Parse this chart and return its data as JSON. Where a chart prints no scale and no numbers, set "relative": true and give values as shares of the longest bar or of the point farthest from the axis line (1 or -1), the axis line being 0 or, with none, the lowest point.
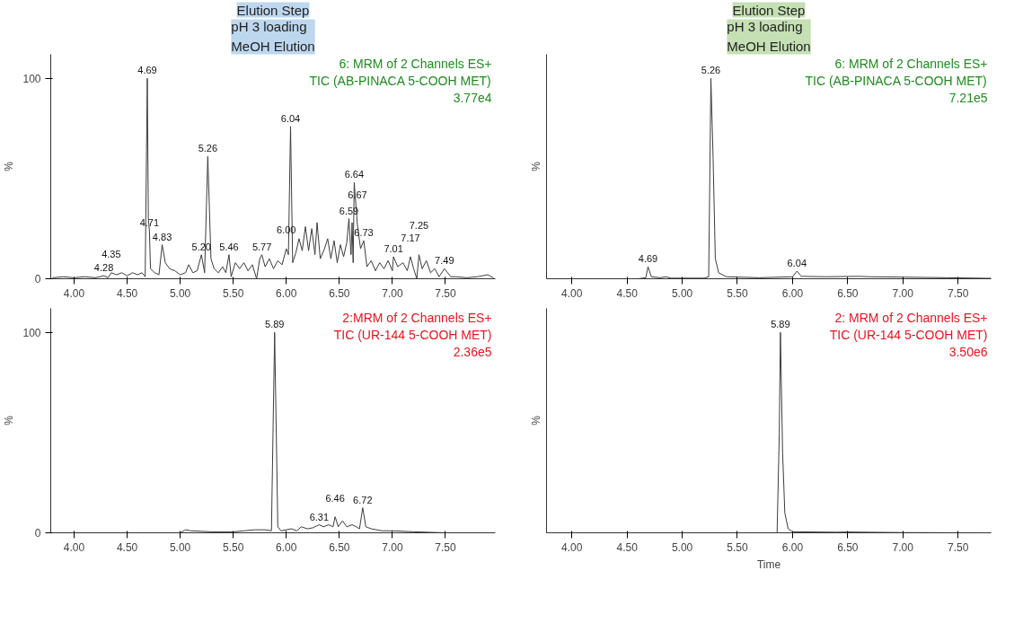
{
  "chart_data": [
    {
      "type": "line",
      "title": "Elution Step",
      "subtitle": "pH 3 loading\nMeOH Elution",
      "ylabel": "%",
      "xlim": [
        3.78,
        7.97
      ],
      "xticks": [
        {
          "value": 4,
          "label": "4.00"
        },
        {
          "value": 4.5,
          "label": "4.50"
        },
        {
          "value": 5,
          "label": "5.00"
        },
        {
          "value": 5.5,
          "label": "5.50"
        },
        {
          "value": 6,
          "label": "6.00"
        },
        {
          "value": 6.5,
          "label": "6.50"
        },
        {
          "value": 7,
          "label": "7.00"
        },
        {
          "value": 7.5,
          "label": "7.50"
        }
      ],
      "ylim": [
        0,
        112
      ],
      "yticks": [
        0,
        100
      ],
      "series": [
        {
          "color": "#3c3c3c",
          "x": [
            3.8,
            3.9,
            4.0,
            4.1,
            4.2,
            4.28,
            4.32,
            4.35,
            4.4,
            4.45,
            4.5,
            4.55,
            4.6,
            4.64,
            4.67,
            4.69,
            4.7,
            4.71,
            4.72,
            4.76,
            4.8,
            4.83,
            4.86,
            4.9,
            4.95,
            5.0,
            5.05,
            5.08,
            5.12,
            5.16,
            5.2,
            5.23,
            5.26,
            5.29,
            5.32,
            5.36,
            5.4,
            5.43,
            5.46,
            5.48,
            5.52,
            5.56,
            5.6,
            5.64,
            5.68,
            5.72,
            5.75,
            5.77,
            5.8,
            5.84,
            5.88,
            5.92,
            5.96,
            6.0,
            6.02,
            6.04,
            6.06,
            6.09,
            6.12,
            6.15,
            6.18,
            6.21,
            6.24,
            6.27,
            6.29,
            6.32,
            6.36,
            6.39,
            6.42,
            6.45,
            6.48,
            6.51,
            6.54,
            6.57,
            6.59,
            6.61,
            6.62,
            6.63,
            6.64,
            6.67,
            6.7,
            6.73,
            6.76,
            6.8,
            6.84,
            6.88,
            6.92,
            6.96,
            7.0,
            7.01,
            7.05,
            7.1,
            7.14,
            7.17,
            7.2,
            7.23,
            7.25,
            7.28,
            7.32,
            7.36,
            7.4,
            7.44,
            7.49,
            7.55,
            7.6,
            7.7,
            7.8,
            7.9,
            7.95
          ],
          "values": [
            0.5,
            1,
            0.5,
            1,
            0.5,
            1.5,
            0.5,
            3,
            2,
            3,
            1.5,
            3,
            2,
            3,
            1,
            100,
            30,
            24,
            5,
            3,
            2,
            17,
            8,
            5,
            4,
            2,
            3,
            7,
            3,
            4,
            12,
            3,
            61,
            10,
            5,
            3,
            6,
            3,
            12,
            1,
            8,
            5,
            8,
            4,
            7,
            0,
            10,
            12,
            6,
            10,
            5,
            9,
            7,
            15,
            12,
            76,
            8,
            13,
            20,
            14,
            26,
            14,
            25,
            12,
            28,
            10,
            15,
            20,
            10,
            19,
            8,
            17,
            11,
            18,
            30,
            12,
            28,
            8,
            48,
            27,
            15,
            19,
            6,
            9,
            4,
            8,
            5,
            9,
            4,
            11,
            6,
            8,
            4,
            11,
            5,
            0,
            12,
            5,
            9,
            3,
            5,
            1,
            5,
            1,
            1,
            0.5,
            1,
            2,
            0.5
          ]
        }
      ],
      "annotations": [
        "6: MRM of 2 Channels ES+\nTIC (AB-PINACA 5-COOH MET)\n3.77e4",
        {
          "text": "4.69",
          "x": 4.69,
          "y": 100
        },
        {
          "text": "4.71",
          "x": 4.71,
          "y": 24
        },
        {
          "text": "4.83",
          "x": 4.83,
          "y": 17
        },
        {
          "text": "5.20",
          "x": 5.2,
          "y": 12
        },
        {
          "text": "5.26",
          "x": 5.26,
          "y": 61
        },
        {
          "text": "5.46",
          "x": 5.46,
          "y": 12
        },
        {
          "text": "5.77",
          "x": 5.77,
          "y": 12
        },
        {
          "text": "6.00",
          "x": 6.0,
          "y": 15
        },
        {
          "text": "6.04",
          "x": 6.04,
          "y": 76
        },
        {
          "text": "6.59",
          "x": 6.59,
          "y": 30
        },
        {
          "text": "6.64",
          "x": 6.64,
          "y": 48
        },
        {
          "text": "6.67",
          "x": 6.67,
          "y": 27
        },
        {
          "text": "6.73",
          "x": 6.73,
          "y": 19
        },
        {
          "text": "7.01",
          "x": 7.01,
          "y": 11
        },
        {
          "text": "7.17",
          "x": 7.17,
          "y": 11
        },
        {
          "text": "7.25",
          "x": 7.25,
          "y": 12
        },
        {
          "text": "7.49",
          "x": 7.49,
          "y": 5
        },
        {
          "text": "4.28",
          "x": 4.28,
          "y": 1.5
        },
        {
          "text": "4.35",
          "x": 4.35,
          "y": 3
        }
      ]
    },
    {
      "type": "line",
      "title": "Elution Step",
      "subtitle": "pH 3 loading\nMeOH Elution",
      "ylabel": "%",
      "relative": true,
      "xlim": [
        3.77,
        7.8
      ],
      "xticks": [
        {
          "value": 4,
          "label": "4.00"
        },
        {
          "value": 4.5,
          "label": "4.50"
        },
        {
          "value": 5,
          "label": "5.00"
        },
        {
          "value": 5.5,
          "label": "5.50"
        },
        {
          "value": 6,
          "label": "6.00"
        },
        {
          "value": 6.5,
          "label": "6.50"
        },
        {
          "value": 7,
          "label": "7.00"
        },
        {
          "value": 7.5,
          "label": "7.50"
        }
      ],
      "series": [
        {
          "color": "#3c3c3c",
          "x": [
            3.77,
            4.6,
            4.67,
            4.69,
            4.72,
            4.8,
            4.85,
            4.9,
            5.2,
            5.24,
            5.25,
            5.26,
            5.28,
            5.3,
            5.33,
            5.4,
            5.7,
            6.0,
            6.04,
            6.08,
            6.3,
            6.6,
            6.7,
            7.0,
            7.4,
            7.8
          ],
          "values": [
            0,
            0,
            0.005,
            0.06,
            0.01,
            0.005,
            0.01,
            0.003,
            0.003,
            0.01,
            0.5,
            1,
            0.6,
            0.1,
            0.03,
            0.01,
            0.005,
            0.01,
            0.038,
            0.012,
            0.01,
            0.012,
            0.01,
            0.008,
            0.005,
            0.002
          ]
        }
      ],
      "annotations": [
        "6: MRM of 2 Channels ES+\nTIC (AB-PINACA 5-COOH MET)\n7.21e5",
        {
          "text": "4.69",
          "x": 4.69,
          "y": 0.06
        },
        {
          "text": "5.26",
          "x": 5.26,
          "y": 1
        },
        {
          "text": "6.04",
          "x": 6.04,
          "y": 0.038
        }
      ]
    },
    {
      "type": "line",
      "ylabel": "%",
      "xlim": [
        3.78,
        7.97
      ],
      "xticks": [
        {
          "value": 4,
          "label": "4.00"
        },
        {
          "value": 4.5,
          "label": "4.50"
        },
        {
          "value": 5,
          "label": "5.00"
        },
        {
          "value": 5.5,
          "label": "5.50"
        },
        {
          "value": 6,
          "label": "6.00"
        },
        {
          "value": 6.5,
          "label": "6.50"
        },
        {
          "value": 7,
          "label": "7.00"
        },
        {
          "value": 7.5,
          "label": "7.50"
        }
      ],
      "ylim": [
        0,
        112
      ],
      "yticks": [
        0,
        100
      ],
      "series": [
        {
          "color": "#3c3c3c",
          "x": [
            3.8,
            4.5,
            5.0,
            5.05,
            5.1,
            5.3,
            5.5,
            5.6,
            5.7,
            5.8,
            5.86,
            5.89,
            5.92,
            5.95,
            6.05,
            6.1,
            6.14,
            6.2,
            6.25,
            6.31,
            6.35,
            6.4,
            6.44,
            6.46,
            6.49,
            6.53,
            6.57,
            6.62,
            6.66,
            6.69,
            6.72,
            6.75,
            6.8,
            6.9,
            7.0,
            7.2,
            7.5,
            7.95
          ],
          "values": [
            0,
            0,
            0,
            1.5,
            1,
            0.5,
            0.5,
            1,
            1.5,
            1.5,
            1,
            100,
            3,
            1,
            2,
            1,
            3,
            2,
            2.5,
            4,
            3,
            4,
            3,
            8,
            3,
            6,
            3,
            4,
            3,
            2,
            12.5,
            3,
            2,
            1,
            1,
            0.5,
            0,
            0
          ]
        }
      ],
      "annotations": [
        "2:MRM of 2 Channels ES+\nTIC (UR-144 5-COOH MET)\n2.36e5",
        {
          "text": "5.89",
          "x": 5.89,
          "y": 100
        },
        {
          "text": "6.31",
          "x": 6.31,
          "y": 4
        },
        {
          "text": "6.46",
          "x": 6.46,
          "y": 8
        },
        {
          "text": "6.72",
          "x": 6.72,
          "y": 12.5
        }
      ]
    },
    {
      "type": "line",
      "ylabel": "%",
      "xlabel": "Time",
      "relative": true,
      "xlim": [
        3.77,
        7.8
      ],
      "xticks": [
        {
          "value": 4,
          "label": "4.00"
        },
        {
          "value": 4.5,
          "label": "4.50"
        },
        {
          "value": 5,
          "label": "5.00"
        },
        {
          "value": 5.5,
          "label": "5.50"
        },
        {
          "value": 6,
          "label": "6.00"
        },
        {
          "value": 6.5,
          "label": "6.50"
        },
        {
          "value": 7,
          "label": "7.00"
        },
        {
          "value": 7.5,
          "label": "7.50"
        }
      ],
      "series": [
        {
          "color": "#3c3c3c",
          "x": [
            3.77,
            5.86,
            5.88,
            5.89,
            5.91,
            5.93,
            5.96,
            6.0,
            6.4,
            6.5,
            7.0,
            7.8
          ],
          "values": [
            0,
            0,
            0.5,
            1,
            0.4,
            0.1,
            0.02,
            0.005,
            0.003,
            0.004,
            0.001,
            0
          ]
        }
      ],
      "annotations": [
        "2: MRM of 2 Channels ES+\nTIC (UR-144 5-COOH MET)\n3.50e6",
        {
          "text": "5.89",
          "x": 5.89,
          "y": 1
        }
      ]
    }
  ]
}
